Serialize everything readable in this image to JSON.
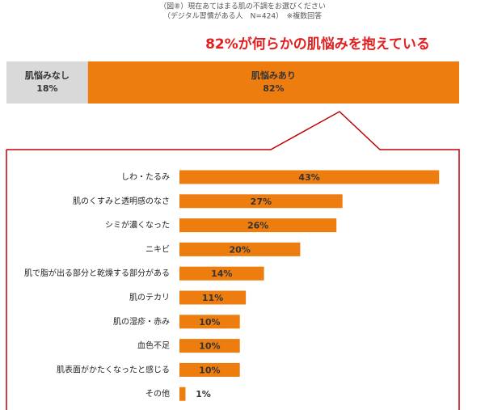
{
  "chart_data": [
    {
      "type": "stacked-bar",
      "title": "（図⑧）現在あてはまる肌の不調をお選びください",
      "subtitle": "（デジタル習慣がある人　N=424）　※複数回答",
      "annotation": "82%が何らかの肌悩みを抱えている",
      "series": [
        {
          "name": "肌悩みなし",
          "color": "#d9d9d9",
          "values": [
            18
          ],
          "value_labels": [
            "18%"
          ]
        },
        {
          "name": "肌悩みあり",
          "color": "#ed7d0f",
          "values": [
            82
          ],
          "value_labels": [
            "82%"
          ]
        }
      ]
    },
    {
      "type": "bar",
      "categories": [
        "しわ・たるみ",
        "肌のくすみと透明感のなさ",
        "シミが濃くなった",
        "ニキビ",
        "肌で脂が出る部分と乾燥する部分がある",
        "肌のテカリ",
        "肌の湿疹・赤み",
        "血色不足",
        "肌表面がかたくなったと感じる",
        "その他"
      ],
      "values": [
        43,
        27,
        26,
        20,
        14,
        11,
        10,
        10,
        10,
        1
      ],
      "value_labels": [
        "43%",
        "27%",
        "26%",
        "20%",
        "14%",
        "11%",
        "10%",
        "10%",
        "10%",
        "1%"
      ],
      "color": "#ed7d0f"
    }
  ]
}
